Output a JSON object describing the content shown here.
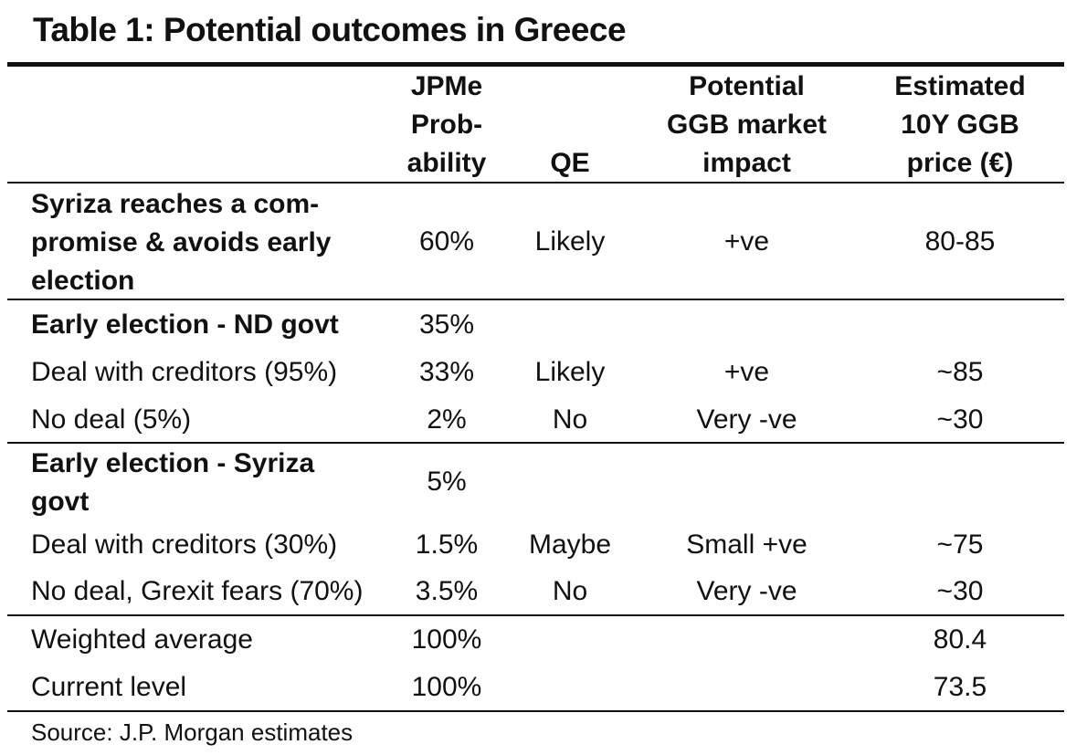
{
  "title": "Table 1: Potential outcomes in Greece",
  "headers": {
    "probability": [
      "JPMe",
      "Prob-",
      "ability"
    ],
    "qe": "QE",
    "impact": [
      "Potential",
      "GGB market",
      "impact"
    ],
    "price": [
      "Estimated",
      "10Y GGB",
      "price (€)"
    ]
  },
  "rows": [
    {
      "label": [
        "Syriza reaches a com-",
        "promise & avoids early",
        "election"
      ],
      "prob": "60%",
      "qe": "Likely",
      "impact": "+ve",
      "price": "80-85"
    },
    {
      "label": "Early election - ND govt",
      "prob": "35%",
      "qe": "",
      "impact": "",
      "price": ""
    },
    {
      "label": "Deal with creditors (95%)",
      "prob": "33%",
      "qe": "Likely",
      "impact": "+ve",
      "price": "~85"
    },
    {
      "label": "No deal (5%)",
      "prob": "2%",
      "qe": "No",
      "impact": "Very -ve",
      "price": "~30"
    },
    {
      "label": [
        "Early election - Syriza",
        "govt"
      ],
      "prob": "5%",
      "qe": "",
      "impact": "",
      "price": ""
    },
    {
      "label": "Deal with creditors (30%)",
      "prob": "1.5%",
      "qe": "Maybe",
      "impact": "Small +ve",
      "price": "~75"
    },
    {
      "label": "No deal, Grexit fears (70%)",
      "prob": "3.5%",
      "qe": "No",
      "impact": "Very -ve",
      "price": "~30"
    },
    {
      "label": "Weighted average",
      "prob": "100%",
      "qe": "",
      "impact": "",
      "price": "80.4"
    },
    {
      "label": "Current level",
      "prob": "100%",
      "qe": "",
      "impact": "",
      "price": "73.5"
    }
  ],
  "source": "Source: J.P. Morgan estimates"
}
